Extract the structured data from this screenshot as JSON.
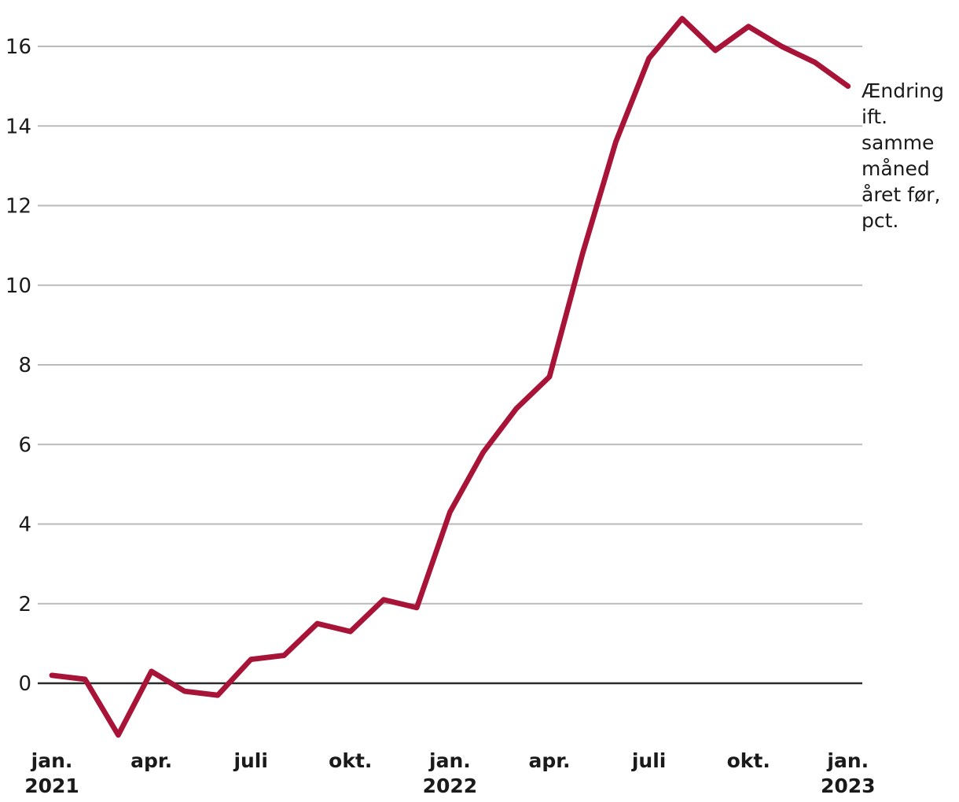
{
  "chart_data": {
    "type": "line",
    "title": "",
    "annotation": "Ændring ift. samme måned året før, pct.",
    "x": [
      "jan. 2021",
      "feb. 2021",
      "mar. 2021",
      "apr. 2021",
      "maj 2021",
      "jun. 2021",
      "jul. 2021",
      "aug. 2021",
      "sep. 2021",
      "okt. 2021",
      "nov. 2021",
      "dec. 2021",
      "jan. 2022",
      "feb. 2022",
      "mar. 2022",
      "apr. 2022",
      "maj 2022",
      "jun. 2022",
      "jul. 2022",
      "aug. 2022",
      "sep. 2022",
      "okt. 2022",
      "nov. 2022",
      "dec. 2022",
      "jan. 2023"
    ],
    "series": [
      {
        "name": "Ændring ift. samme måned året før, pct.",
        "values": [
          0.2,
          0.1,
          -1.3,
          0.3,
          -0.2,
          -0.3,
          0.6,
          0.7,
          1.5,
          1.3,
          2.1,
          1.9,
          4.3,
          5.8,
          6.9,
          7.7,
          10.8,
          13.6,
          15.7,
          16.7,
          15.9,
          16.5,
          16.0,
          15.6,
          15.0
        ]
      }
    ],
    "x_ticks": [
      {
        "index": 0,
        "month": "jan.",
        "year": "2021"
      },
      {
        "index": 3,
        "month": "apr.",
        "year": ""
      },
      {
        "index": 6,
        "month": "juli",
        "year": ""
      },
      {
        "index": 9,
        "month": "okt.",
        "year": ""
      },
      {
        "index": 12,
        "month": "jan.",
        "year": "2022"
      },
      {
        "index": 15,
        "month": "apr.",
        "year": ""
      },
      {
        "index": 18,
        "month": "juli",
        "year": ""
      },
      {
        "index": 21,
        "month": "okt.",
        "year": ""
      },
      {
        "index": 24,
        "month": "jan.",
        "year": "2023"
      }
    ],
    "y_ticks": [
      0,
      2,
      4,
      6,
      8,
      10,
      12,
      14,
      16
    ],
    "ylim": [
      -1.8,
      17.0
    ],
    "grid": "horizontal",
    "legend_position": "right-annotation",
    "colors": {
      "line": "#a81437",
      "grid": "#bababa",
      "zero_line": "#2b2b2b",
      "text": "#1a1a1a"
    }
  }
}
